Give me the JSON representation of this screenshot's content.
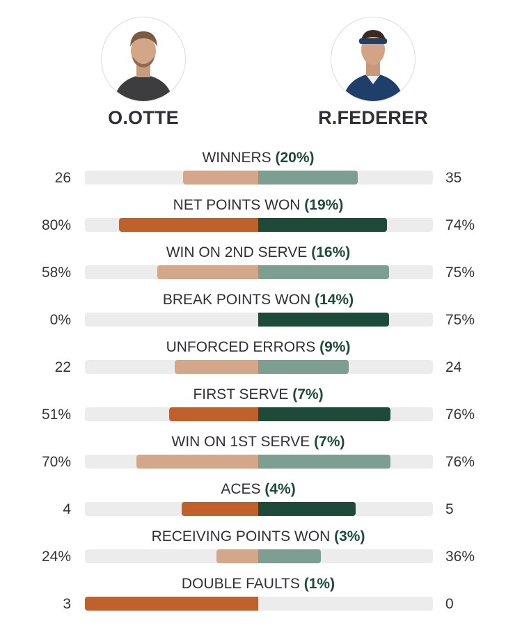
{
  "players": {
    "left": {
      "name": "O.OTTE",
      "avatar_icon": "player-photo-icon"
    },
    "right": {
      "name": "R.FEDERER",
      "avatar_icon": "player-photo-icon"
    }
  },
  "colors": {
    "left_strong": "#c0612d",
    "left_light": "#d4a68a",
    "right_strong": "#1e4a3a",
    "right_light": "#7e9e92",
    "track": "#ececec"
  },
  "stats": [
    {
      "label": "WINNERS",
      "pct": "(20%)",
      "left": "26",
      "right": "35",
      "left_fill": 0.43,
      "right_fill": 0.57,
      "style": "light"
    },
    {
      "label": "NET POINTS WON",
      "pct": "(19%)",
      "left": "80%",
      "right": "74%",
      "left_fill": 0.8,
      "right_fill": 0.74,
      "style": "strong"
    },
    {
      "label": "WIN ON 2ND SERVE",
      "pct": "(16%)",
      "left": "58%",
      "right": "75%",
      "left_fill": 0.58,
      "right_fill": 0.75,
      "style": "light"
    },
    {
      "label": "BREAK POINTS WON",
      "pct": "(14%)",
      "left": "0%",
      "right": "75%",
      "left_fill": 0.0,
      "right_fill": 0.75,
      "style": "strong"
    },
    {
      "label": "UNFORCED ERRORS",
      "pct": "(9%)",
      "left": "22",
      "right": "24",
      "left_fill": 0.48,
      "right_fill": 0.52,
      "style": "light"
    },
    {
      "label": "FIRST SERVE",
      "pct": "(7%)",
      "left": "51%",
      "right": "76%",
      "left_fill": 0.51,
      "right_fill": 0.76,
      "style": "strong"
    },
    {
      "label": "WIN ON 1ST SERVE",
      "pct": "(7%)",
      "left": "70%",
      "right": "76%",
      "left_fill": 0.7,
      "right_fill": 0.76,
      "style": "light"
    },
    {
      "label": "ACES",
      "pct": "(4%)",
      "left": "4",
      "right": "5",
      "left_fill": 0.44,
      "right_fill": 0.56,
      "style": "strong"
    },
    {
      "label": "RECEIVING POINTS WON",
      "pct": "(3%)",
      "left": "24%",
      "right": "36%",
      "left_fill": 0.24,
      "right_fill": 0.36,
      "style": "light"
    },
    {
      "label": "DOUBLE FAULTS",
      "pct": "(1%)",
      "left": "3",
      "right": "0",
      "left_fill": 1.0,
      "right_fill": 0.0,
      "style": "strong"
    }
  ]
}
